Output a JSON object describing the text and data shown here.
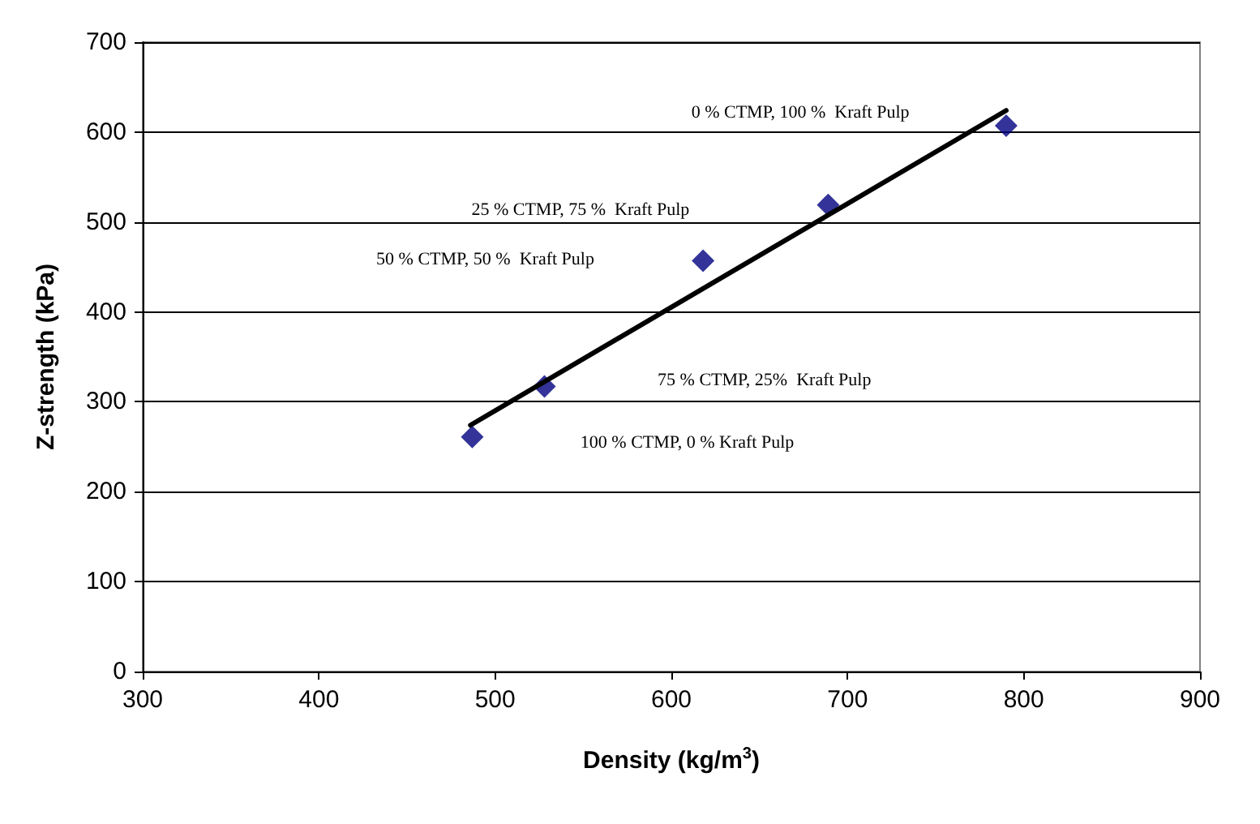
{
  "chart_data": {
    "type": "scatter",
    "xlabel": "Density (kg/m$^{3}$)",
    "ylabel": "Z-strength (kPa)",
    "xlim": [
      300,
      900
    ],
    "xticks": [
      300,
      400,
      500,
      600,
      700,
      800,
      900
    ],
    "ylim": [
      0,
      700
    ],
    "yticks": [
      0,
      100,
      200,
      300,
      400,
      500,
      600,
      700
    ],
    "grid": "y",
    "series": [
      {
        "color": "#000080",
        "marker": "diamond",
        "x": [
          487,
          528,
          618,
          689,
          790
        ],
        "values": [
          261,
          317,
          457,
          519,
          607
        ]
      },
      {
        "type": "line",
        "color": "#000000",
        "marker": "none",
        "line_style": "solid",
        "x": [
          486,
          790
        ],
        "values": [
          274,
          624
        ]
      }
    ],
    "annotations": [
      "0 % CTMP, 100 %  Kraft Pulp",
      "25 % CTMP, 75 %  Kraft Pulp",
      "50 % CTMP, 50 %  Kraft Pulp",
      "75 % CTMP, 25%  Kraft Pulp",
      "100 % CTMP, 0 % Kraft Pulp"
    ]
  }
}
